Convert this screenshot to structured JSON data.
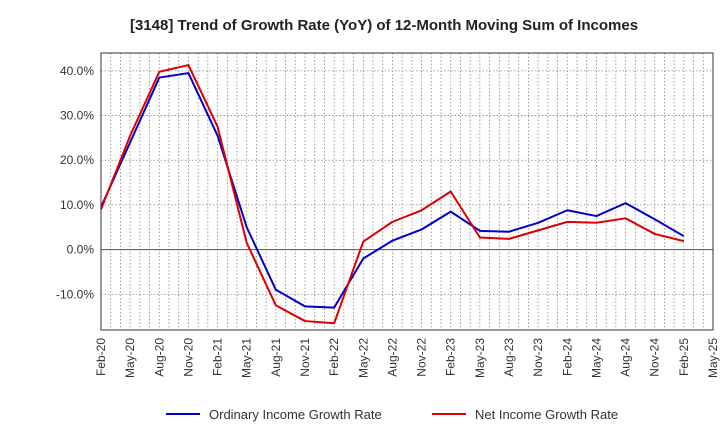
{
  "chart_data": {
    "type": "line",
    "title": "[3148]  Trend of Growth Rate (YoY) of 12-Month Moving Sum of Incomes",
    "xlabel": "",
    "ylabel": "",
    "x": [
      "Feb-20",
      "May-20",
      "Aug-20",
      "Nov-20",
      "Feb-21",
      "May-21",
      "Aug-21",
      "Nov-21",
      "Feb-22",
      "May-22",
      "Aug-22",
      "Nov-22",
      "Feb-23",
      "May-23",
      "Aug-23",
      "Nov-23",
      "Feb-24",
      "May-24",
      "Aug-24",
      "Nov-24",
      "Feb-25",
      "May-25"
    ],
    "ylim": [
      -18,
      44
    ],
    "yticks": [
      -10,
      0,
      10,
      20,
      30,
      40
    ],
    "ytick_labels": [
      "-10.0%",
      "0.0%",
      "10.0%",
      "20.0%",
      "30.0%",
      "40.0%"
    ],
    "grid": true,
    "legend_position": "bottom",
    "series": [
      {
        "name": "Ordinary Income Growth Rate",
        "color": "#0000cc",
        "values": [
          9.5,
          24.0,
          38.5,
          39.5,
          25.5,
          5.0,
          -9.0,
          -12.7,
          -13.0,
          -2.0,
          2.0,
          4.5,
          8.5,
          4.2,
          4.0,
          6.0,
          8.8,
          7.5,
          10.4,
          6.8,
          3.0,
          null
        ]
      },
      {
        "name": "Net Income Growth Rate",
        "color": "#dd0000",
        "values": [
          9.0,
          25.5,
          39.8,
          41.3,
          27.5,
          1.5,
          -12.5,
          -16.0,
          -16.5,
          1.8,
          6.2,
          8.8,
          13.0,
          2.7,
          2.4,
          4.3,
          6.2,
          6.0,
          7.0,
          3.5,
          1.9,
          null
        ]
      }
    ]
  }
}
